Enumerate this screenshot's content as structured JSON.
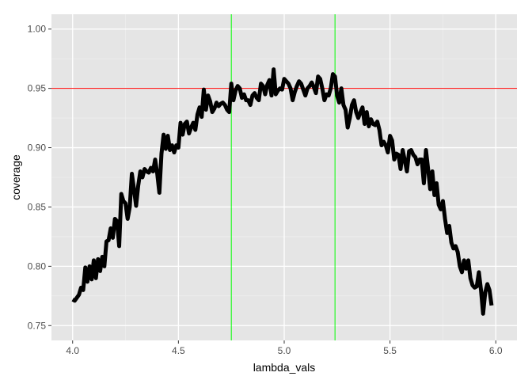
{
  "chart_data": {
    "type": "line",
    "title": "",
    "xlabel": "lambda_vals",
    "ylabel": "coverage",
    "xlim": [
      3.9,
      6.1
    ],
    "ylim": [
      0.7375,
      1.0125
    ],
    "xticks": [
      4.0,
      4.5,
      5.0,
      5.5,
      6.0
    ],
    "xtick_labels": [
      "4.0",
      "4.5",
      "5.0",
      "5.5",
      "6.0"
    ],
    "yticks": [
      0.75,
      0.8,
      0.85,
      0.9,
      0.95,
      1.0
    ],
    "ytick_labels": [
      "0.75",
      "0.80",
      "0.85",
      "0.90",
      "0.95",
      "1.00"
    ],
    "grid": true,
    "background": "#e5e5e5",
    "series_color": "#000000",
    "hline": {
      "y": 0.95,
      "color": "#ff0000"
    },
    "vlines": {
      "x": [
        4.75,
        5.24
      ],
      "color": "#00ff00"
    },
    "series": [
      {
        "x": [
          4.0,
          4.01,
          4.03,
          4.04,
          4.05,
          4.06,
          4.07,
          4.08,
          4.09,
          4.1,
          4.11,
          4.12,
          4.13,
          4.14,
          4.15,
          4.16,
          4.17,
          4.18,
          4.19,
          4.2,
          4.21,
          4.22,
          4.23,
          4.24,
          4.25,
          4.26,
          4.27,
          4.28,
          4.29,
          4.3,
          4.31,
          4.32,
          4.33,
          4.34,
          4.35,
          4.36,
          4.37,
          4.38,
          4.39,
          4.4,
          4.41,
          4.42,
          4.43,
          4.44,
          4.45,
          4.46,
          4.47,
          4.48,
          4.49,
          4.5,
          4.51,
          4.52,
          4.53,
          4.54,
          4.55,
          4.56,
          4.57,
          4.58,
          4.59,
          4.6,
          4.61,
          4.62,
          4.63,
          4.64,
          4.65,
          4.66,
          4.67,
          4.68,
          4.69,
          4.7,
          4.71,
          4.72,
          4.73,
          4.74,
          4.75,
          4.76,
          4.77,
          4.78,
          4.79,
          4.8,
          4.81,
          4.82,
          4.83,
          4.84,
          4.85,
          4.86,
          4.87,
          4.88,
          4.89,
          4.9,
          4.91,
          4.92,
          4.93,
          4.94,
          4.95,
          4.96,
          4.97,
          4.98,
          4.99,
          5.0,
          5.01,
          5.02,
          5.03,
          5.04,
          5.05,
          5.06,
          5.07,
          5.08,
          5.09,
          5.1,
          5.11,
          5.12,
          5.13,
          5.14,
          5.15,
          5.16,
          5.17,
          5.18,
          5.19,
          5.2,
          5.21,
          5.22,
          5.23,
          5.24,
          5.25,
          5.26,
          5.27,
          5.28,
          5.29,
          5.3,
          5.31,
          5.32,
          5.33,
          5.34,
          5.35,
          5.36,
          5.37,
          5.38,
          5.39,
          5.4,
          5.41,
          5.42,
          5.43,
          5.44,
          5.45,
          5.46,
          5.47,
          5.48,
          5.49,
          5.5,
          5.51,
          5.52,
          5.53,
          5.54,
          5.55,
          5.56,
          5.57,
          5.58,
          5.59,
          5.6,
          5.61,
          5.62,
          5.63,
          5.64,
          5.65,
          5.66,
          5.67,
          5.68,
          5.69,
          5.7,
          5.71,
          5.72,
          5.73,
          5.74,
          5.75,
          5.76,
          5.77,
          5.78,
          5.79,
          5.8,
          5.81,
          5.82,
          5.83,
          5.84,
          5.85,
          5.86,
          5.87,
          5.88,
          5.89,
          5.9,
          5.91,
          5.92,
          5.93,
          5.94,
          5.95,
          5.96,
          5.97,
          5.98
        ],
        "y": [
          0.772,
          0.771,
          0.776,
          0.782,
          0.78,
          0.799,
          0.787,
          0.8,
          0.789,
          0.805,
          0.79,
          0.806,
          0.796,
          0.808,
          0.8,
          0.821,
          0.822,
          0.832,
          0.824,
          0.84,
          0.838,
          0.817,
          0.861,
          0.855,
          0.853,
          0.84,
          0.85,
          0.878,
          0.865,
          0.851,
          0.868,
          0.88,
          0.875,
          0.882,
          0.88,
          0.879,
          0.883,
          0.88,
          0.89,
          0.878,
          0.862,
          0.895,
          0.911,
          0.899,
          0.91,
          0.898,
          0.902,
          0.896,
          0.902,
          0.9,
          0.921,
          0.911,
          0.92,
          0.922,
          0.912,
          0.917,
          0.921,
          0.915,
          0.928,
          0.934,
          0.926,
          0.949,
          0.932,
          0.944,
          0.939,
          0.93,
          0.933,
          0.938,
          0.935,
          0.937,
          0.938,
          0.936,
          0.932,
          0.93,
          0.954,
          0.94,
          0.948,
          0.952,
          0.95,
          0.942,
          0.945,
          0.94,
          0.94,
          0.936,
          0.944,
          0.946,
          0.942,
          0.94,
          0.954,
          0.952,
          0.945,
          0.953,
          0.957,
          0.944,
          0.966,
          0.945,
          0.948,
          0.95,
          0.949,
          0.958,
          0.956,
          0.954,
          0.95,
          0.94,
          0.947,
          0.952,
          0.956,
          0.954,
          0.949,
          0.944,
          0.95,
          0.952,
          0.955,
          0.951,
          0.946,
          0.96,
          0.958,
          0.95,
          0.94,
          0.945,
          0.944,
          0.95,
          0.962,
          0.96,
          0.944,
          0.938,
          0.95,
          0.936,
          0.932,
          0.917,
          0.925,
          0.936,
          0.94,
          0.93,
          0.925,
          0.93,
          0.934,
          0.92,
          0.93,
          0.918,
          0.924,
          0.92,
          0.919,
          0.922,
          0.915,
          0.902,
          0.905,
          0.902,
          0.896,
          0.91,
          0.906,
          0.89,
          0.895,
          0.894,
          0.882,
          0.898,
          0.889,
          0.88,
          0.897,
          0.898,
          0.894,
          0.892,
          0.886,
          0.89,
          0.89,
          0.87,
          0.898,
          0.882,
          0.865,
          0.88,
          0.86,
          0.87,
          0.852,
          0.848,
          0.855,
          0.84,
          0.828,
          0.834,
          0.82,
          0.815,
          0.817,
          0.812,
          0.8,
          0.795,
          0.805,
          0.798,
          0.805,
          0.79,
          0.784,
          0.782,
          0.783,
          0.795,
          0.78,
          0.76,
          0.778,
          0.785,
          0.78,
          0.767
        ]
      }
    ]
  }
}
